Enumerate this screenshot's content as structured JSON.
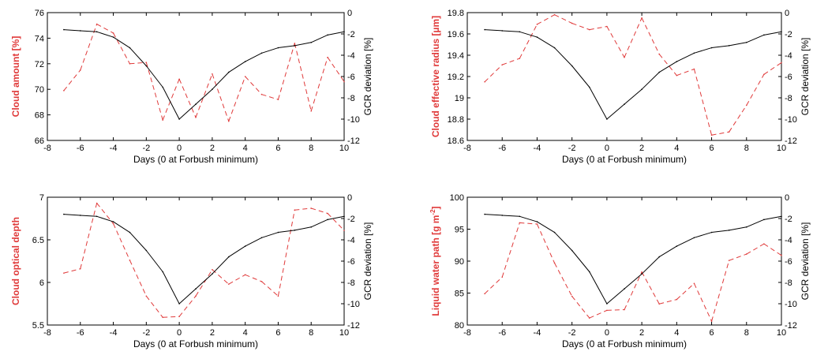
{
  "colors": {
    "cloud_series": "#e03a3a",
    "gcr_series": "#000000",
    "axis": "#000000"
  },
  "chart_data": [
    {
      "type": "line",
      "xlabel": "Days (0 at Forbush minimum)",
      "ylabel_left": "Cloud amount [%]",
      "ylabel_right": "GCR deviation [%]",
      "xlim": [
        -8,
        10
      ],
      "x_ticks": [
        -8,
        -6,
        -4,
        -2,
        0,
        2,
        4,
        6,
        8,
        10
      ],
      "ylim_left": [
        66,
        76
      ],
      "y_ticks_left": [
        "66",
        "68",
        "70",
        "72",
        "74",
        "76"
      ],
      "ylim_right": [
        -12,
        0
      ],
      "y_ticks_right": [
        "-12",
        "-10",
        "-8",
        "-6",
        "-4",
        "-2",
        "0"
      ],
      "series": [
        {
          "axis": "left",
          "style": "dashed",
          "x": [
            -7,
            -6,
            -5,
            -4,
            -3,
            -2,
            -1,
            0,
            1,
            2,
            3,
            4,
            5,
            6,
            7,
            8,
            9,
            10
          ],
          "y": [
            69.9,
            71.5,
            75.1,
            74.4,
            72.0,
            72.1,
            67.6,
            70.8,
            67.8,
            71.2,
            67.5,
            71.0,
            69.6,
            69.2,
            73.6,
            68.3,
            72.5,
            70.6
          ]
        },
        {
          "axis": "right",
          "style": "solid",
          "x": [
            -7,
            -6,
            -5,
            -4,
            -3,
            -2,
            -1,
            0,
            1,
            2,
            3,
            4,
            5,
            6,
            7,
            8,
            9,
            10
          ],
          "y": [
            -1.6,
            -1.7,
            -1.8,
            -2.3,
            -3.3,
            -5.0,
            -7.0,
            -10.0,
            -8.6,
            -7.2,
            -5.6,
            -4.6,
            -3.8,
            -3.3,
            -3.1,
            -2.8,
            -2.1,
            -1.8
          ]
        }
      ]
    },
    {
      "type": "line",
      "xlabel": "Days (0 at Forbush minimum)",
      "ylabel_left": "Cloud effective radius [µm]",
      "ylabel_right": "GCR deviation [%]",
      "xlim": [
        -8,
        10
      ],
      "x_ticks": [
        -8,
        -6,
        -4,
        -2,
        0,
        2,
        4,
        6,
        8,
        10
      ],
      "ylim_left": [
        18.6,
        19.8
      ],
      "y_ticks_left": [
        "18.6",
        "18.8",
        "19",
        "19.2",
        "19.4",
        "19.6",
        "19.8"
      ],
      "ylim_right": [
        -12,
        0
      ],
      "y_ticks_right": [
        "-12",
        "-10",
        "-8",
        "-6",
        "-4",
        "-2",
        "0"
      ],
      "series": [
        {
          "axis": "left",
          "style": "dashed",
          "x": [
            -7,
            -6,
            -5,
            -4,
            -3,
            -2,
            -1,
            0,
            1,
            2,
            3,
            4,
            5,
            6,
            7,
            8,
            9,
            10
          ],
          "y": [
            19.15,
            19.31,
            19.37,
            19.69,
            19.78,
            19.7,
            19.64,
            19.67,
            19.38,
            19.75,
            19.41,
            19.21,
            19.27,
            18.65,
            18.68,
            18.93,
            19.22,
            19.33
          ]
        },
        {
          "axis": "right",
          "style": "solid",
          "x": [
            -7,
            -6,
            -5,
            -4,
            -3,
            -2,
            -1,
            0,
            1,
            2,
            3,
            4,
            5,
            6,
            7,
            8,
            9,
            10
          ],
          "y": [
            -1.6,
            -1.7,
            -1.8,
            -2.3,
            -3.3,
            -5.0,
            -7.0,
            -10.0,
            -8.6,
            -7.2,
            -5.6,
            -4.6,
            -3.8,
            -3.3,
            -3.1,
            -2.8,
            -2.1,
            -1.8
          ]
        }
      ]
    },
    {
      "type": "line",
      "xlabel": "Days (0 at Forbush minimum)",
      "ylabel_left": "Cloud optical depth",
      "ylabel_right": "GCR deviation [%]",
      "xlim": [
        -8,
        10
      ],
      "x_ticks": [
        -8,
        -6,
        -4,
        -2,
        0,
        2,
        4,
        6,
        8,
        10
      ],
      "ylim_left": [
        5.5,
        7
      ],
      "y_ticks_left": [
        "5.5",
        "6",
        "6.5",
        "7"
      ],
      "ylim_right": [
        -12,
        0
      ],
      "y_ticks_right": [
        "-12",
        "-10",
        "-8",
        "-6",
        "-4",
        "-2",
        "0"
      ],
      "series": [
        {
          "axis": "left",
          "style": "dashed",
          "x": [
            -7,
            -6,
            -5,
            -4,
            -3,
            -2,
            -1,
            0,
            1,
            2,
            3,
            4,
            5,
            6,
            7,
            8,
            9,
            10
          ],
          "y": [
            6.11,
            6.16,
            6.93,
            6.69,
            6.26,
            5.84,
            5.59,
            5.6,
            5.84,
            6.15,
            5.98,
            6.09,
            6.01,
            5.84,
            6.85,
            6.87,
            6.81,
            6.61
          ]
        },
        {
          "axis": "right",
          "style": "solid",
          "x": [
            -7,
            -6,
            -5,
            -4,
            -3,
            -2,
            -1,
            0,
            1,
            2,
            3,
            4,
            5,
            6,
            7,
            8,
            9,
            10
          ],
          "y": [
            -1.6,
            -1.7,
            -1.8,
            -2.3,
            -3.3,
            -5.0,
            -7.0,
            -10.0,
            -8.6,
            -7.2,
            -5.6,
            -4.6,
            -3.8,
            -3.3,
            -3.1,
            -2.8,
            -2.1,
            -1.8
          ]
        }
      ]
    },
    {
      "type": "line",
      "xlabel": "Days (0 at Forbush minimum)",
      "ylabel_left": "Liquid water path [g m",
      "ylabel_left_sup": "-2",
      "ylabel_left_end": "]",
      "ylabel_right": "GCR deviation [%]",
      "xlim": [
        -8,
        10
      ],
      "x_ticks": [
        -8,
        -6,
        -4,
        -2,
        0,
        2,
        4,
        6,
        8,
        10
      ],
      "ylim_left": [
        80,
        100
      ],
      "y_ticks_left": [
        "80",
        "85",
        "90",
        "95",
        "100"
      ],
      "ylim_right": [
        -12,
        0
      ],
      "y_ticks_right": [
        "-12",
        "-10",
        "-8",
        "-6",
        "-4",
        "-2",
        "0"
      ],
      "series": [
        {
          "axis": "left",
          "style": "dashed",
          "x": [
            -7,
            -6,
            -5,
            -4,
            -3,
            -2,
            -1,
            0,
            1,
            2,
            3,
            4,
            5,
            6,
            7,
            8,
            9,
            10
          ],
          "y": [
            84.9,
            87.5,
            96.0,
            95.8,
            89.7,
            84.5,
            81.1,
            82.3,
            82.4,
            88.3,
            83.3,
            84.0,
            86.5,
            80.6,
            90.1,
            91.1,
            92.7,
            90.9
          ]
        },
        {
          "axis": "right",
          "style": "solid",
          "x": [
            -7,
            -6,
            -5,
            -4,
            -3,
            -2,
            -1,
            0,
            1,
            2,
            3,
            4,
            5,
            6,
            7,
            8,
            9,
            10
          ],
          "y": [
            -1.6,
            -1.7,
            -1.8,
            -2.3,
            -3.3,
            -5.0,
            -7.0,
            -10.0,
            -8.6,
            -7.2,
            -5.6,
            -4.6,
            -3.8,
            -3.3,
            -3.1,
            -2.8,
            -2.1,
            -1.8
          ]
        }
      ]
    }
  ]
}
